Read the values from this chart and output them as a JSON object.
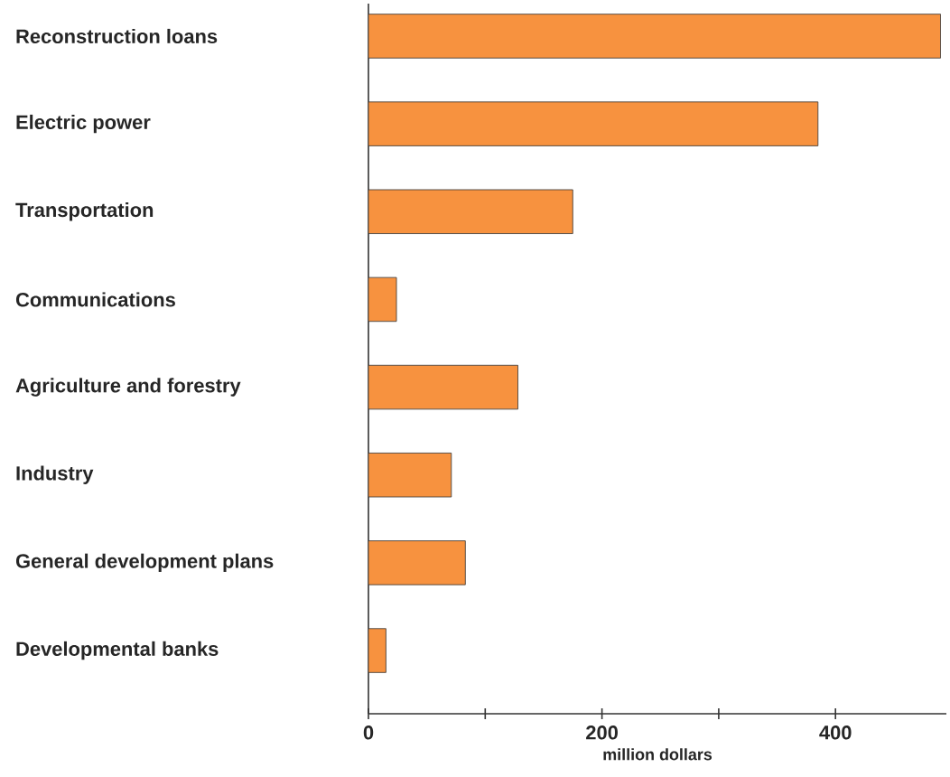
{
  "chart_data": {
    "type": "bar",
    "orientation": "horizontal",
    "xlabel": "million dollars",
    "categories": [
      "Reconstruction loans",
      "Electric power",
      "Transportation",
      "Communications",
      "Agriculture and forestry",
      "Industry",
      "General development plans",
      "Developmental banks"
    ],
    "values": [
      490,
      385,
      175,
      24,
      128,
      71,
      83,
      15
    ],
    "color": "#f7923f",
    "xlim": [
      0,
      495
    ],
    "xticks": [
      0,
      {
        "value": 100,
        "label": null
      },
      200,
      {
        "value": 300,
        "label": null
      },
      400
    ],
    "line_style": "solid"
  }
}
